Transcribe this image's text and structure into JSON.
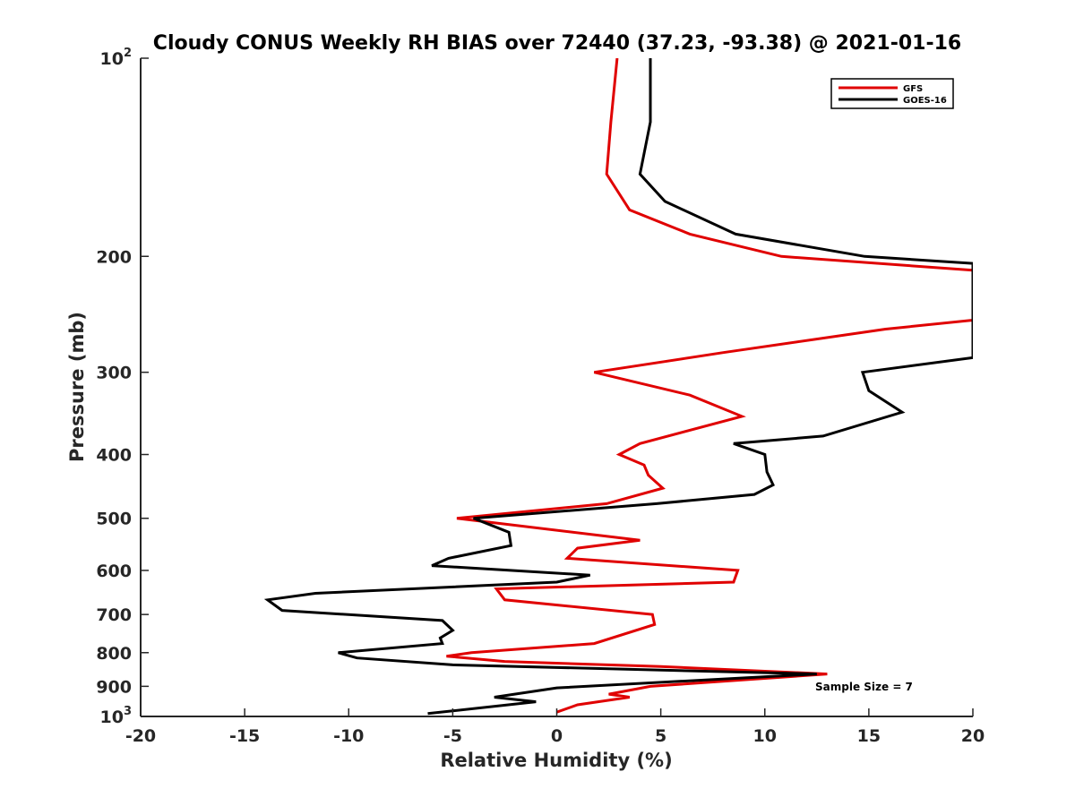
{
  "chart_data": {
    "type": "line",
    "title": "Cloudy CONUS Weekly RH BIAS over 72440 (37.23, -93.38) @ 2021-01-16",
    "xlabel": "Relative Humidity (%)",
    "ylabel": "Pressure (mb)",
    "xlim": [
      -20,
      20
    ],
    "ylim": [
      100,
      1000
    ],
    "yscale": "log",
    "yreversed": true,
    "grid": false,
    "x_ticks": [
      "-20",
      "-15",
      "-10",
      "-5",
      "0",
      "5",
      "10",
      "15",
      "20"
    ],
    "y_ticks": [
      {
        "value": 100,
        "base": "10",
        "exp": "2"
      },
      {
        "value": 200,
        "label": "200"
      },
      {
        "value": 300,
        "label": "300"
      },
      {
        "value": 400,
        "label": "400"
      },
      {
        "value": 500,
        "label": "500"
      },
      {
        "value": 600,
        "label": "600"
      },
      {
        "value": 700,
        "label": "700"
      },
      {
        "value": 800,
        "label": "800"
      },
      {
        "value": 900,
        "label": "900"
      },
      {
        "value": 1000,
        "base": "10",
        "exp": "3"
      }
    ],
    "legend_position": "top-right",
    "annotation": "Sample Size = 7",
    "series": [
      {
        "name": "GFS",
        "color": "#e00000",
        "points": [
          [
            2.9,
            100
          ],
          [
            2.6,
            125
          ],
          [
            2.4,
            150
          ],
          [
            3.5,
            170
          ],
          [
            6.4,
            185
          ],
          [
            10.8,
            200
          ],
          [
            20,
            210
          ],
          [
            20,
            250
          ],
          [
            15.8,
            258
          ],
          [
            8,
            280
          ],
          [
            1.8,
            300
          ],
          [
            6.4,
            325
          ],
          [
            8.9,
            350
          ],
          [
            4,
            385
          ],
          [
            3,
            400
          ],
          [
            4.2,
            415
          ],
          [
            4.4,
            430
          ],
          [
            5.1,
            450
          ],
          [
            2.4,
            475
          ],
          [
            -4.8,
            500
          ],
          [
            4,
            540
          ],
          [
            1,
            555
          ],
          [
            0.5,
            575
          ],
          [
            8.7,
            600
          ],
          [
            8.5,
            625
          ],
          [
            -2.9,
            640
          ],
          [
            -2.5,
            665
          ],
          [
            4.6,
            700
          ],
          [
            4.7,
            725
          ],
          [
            1.8,
            775
          ],
          [
            -4.1,
            800
          ],
          [
            -5.3,
            810
          ],
          [
            -2.5,
            825
          ],
          [
            5,
            840
          ],
          [
            13,
            862
          ],
          [
            4.5,
            900
          ],
          [
            2.5,
            925
          ],
          [
            3.5,
            935
          ],
          [
            1,
            960
          ],
          [
            0,
            985
          ]
        ]
      },
      {
        "name": "GOES-16",
        "color": "#000000",
        "points": [
          [
            4.5,
            100
          ],
          [
            4.5,
            125
          ],
          [
            4,
            150
          ],
          [
            5.2,
            165
          ],
          [
            8.6,
            185
          ],
          [
            14.8,
            200
          ],
          [
            20,
            205
          ],
          [
            20,
            285
          ],
          [
            14.7,
            300
          ],
          [
            15,
            320
          ],
          [
            16.6,
            345
          ],
          [
            12.8,
            375
          ],
          [
            8.5,
            385
          ],
          [
            10,
            400
          ],
          [
            10.1,
            425
          ],
          [
            10.4,
            445
          ],
          [
            9.5,
            460
          ],
          [
            4.8,
            475
          ],
          [
            -4,
            500
          ],
          [
            -2.3,
            525
          ],
          [
            -2.2,
            550
          ],
          [
            -5.2,
            575
          ],
          [
            -6,
            590
          ],
          [
            1.6,
            610
          ],
          [
            0,
            625
          ],
          [
            -11.6,
            650
          ],
          [
            -13.9,
            665
          ],
          [
            -13.2,
            690
          ],
          [
            -5.5,
            715
          ],
          [
            -5,
            740
          ],
          [
            -5.6,
            760
          ],
          [
            -5.5,
            775
          ],
          [
            -10.5,
            800
          ],
          [
            -9.6,
            815
          ],
          [
            -5,
            835
          ],
          [
            8,
            855
          ],
          [
            12.5,
            862
          ],
          [
            0,
            905
          ],
          [
            -3,
            935
          ],
          [
            -1,
            950
          ],
          [
            -6.2,
            990
          ]
        ]
      }
    ]
  }
}
